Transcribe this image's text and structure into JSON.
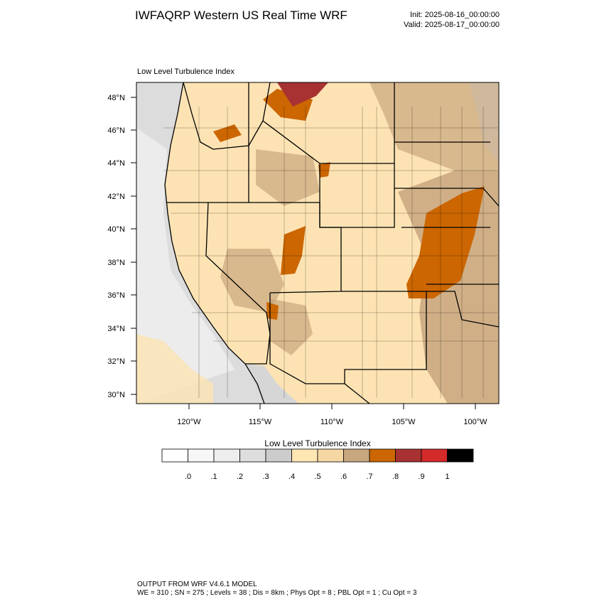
{
  "header": {
    "title": "IWFAQRP Western US Real Time WRF",
    "init": "Init: 2025-08-16_00:00:00",
    "valid": "Valid: 2025-08-17_00:00:00"
  },
  "map": {
    "label": "Low Level Turbulence Index",
    "lat_labels": [
      "48°N",
      "46°N",
      "44°N",
      "42°N",
      "40°N",
      "38°N",
      "36°N",
      "34°N",
      "32°N",
      "30°N"
    ],
    "lon_labels": [
      "120°W",
      "115°W",
      "110°W",
      "105°W",
      "100°W"
    ]
  },
  "colorbar": {
    "title": "Low Level Turbulence Index",
    "colors": [
      "#ffffff",
      "#f7f7f7",
      "#eeeeee",
      "#dddddd",
      "#cccccc",
      "#ffe6b3",
      "#f5d7a3",
      "#c8a67f",
      "#cc6600",
      "#a83232",
      "#d42a2a",
      "#000000"
    ],
    "labels": [
      ".0",
      ".1",
      ".2",
      ".3",
      ".4",
      ".5",
      ".6",
      ".7",
      ".8",
      ".9",
      "1"
    ]
  },
  "footer": {
    "line1": "OUTPUT FROM WRF V4.6.1 MODEL",
    "line2": "WE = 310 ; SN = 275 ; Levels = 38 ; Dis = 8km ; Phys Opt = 8 ; PBL Opt = 1 ; Cu Opt = 3"
  }
}
